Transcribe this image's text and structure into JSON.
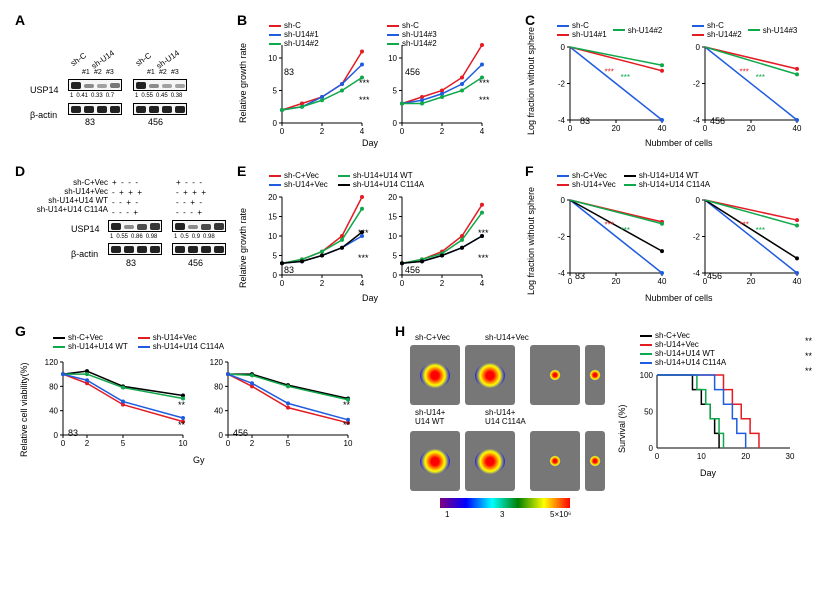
{
  "labels": {
    "A": "A",
    "B": "B",
    "C": "C",
    "D": "D",
    "E": "E",
    "F": "F",
    "G": "G",
    "H": "H"
  },
  "colors": {
    "red": "#e31b23",
    "blue": "#1f5ce0",
    "green": "#0fa84a",
    "black": "#000000",
    "grid": "#000000",
    "axis": "#000000"
  },
  "panelA": {
    "proteins": [
      "USP14",
      "β-actin"
    ],
    "cells": [
      "83",
      "456"
    ],
    "top_labels_left": [
      "sh-C",
      "sh-U14"
    ],
    "lane_sublabels": [
      "#1",
      "#2",
      "#3"
    ],
    "densities": [
      [
        "1",
        "0.41",
        "0.33",
        "0.7"
      ],
      [
        "1",
        "0.55",
        "0.45",
        "0.38"
      ]
    ]
  },
  "panelB": {
    "ylabel": "Relative growth rate",
    "xlabel": "Day",
    "cells": [
      "83",
      "456"
    ],
    "legend_left": [
      {
        "label": "sh-C",
        "color": "#e31b23"
      },
      {
        "label": "sh-U14#1",
        "color": "#1f5ce0"
      },
      {
        "label": "sh-U14#2",
        "color": "#0fa84a"
      }
    ],
    "legend_right": [
      {
        "label": "sh-C",
        "color": "#e31b23"
      },
      {
        "label": "sh-U14#3",
        "color": "#1f5ce0"
      },
      {
        "label": "sh-U14#2",
        "color": "#0fa84a"
      }
    ],
    "data83": {
      "x": [
        0,
        1,
        2,
        3,
        4
      ],
      "shC": [
        2,
        3,
        4,
        6,
        11
      ],
      "shU14_1": [
        2,
        2.5,
        4,
        6,
        9
      ],
      "shU14_2": [
        2,
        2.5,
        3.5,
        5,
        7
      ]
    },
    "data456": {
      "x": [
        0,
        1,
        2,
        3,
        4
      ],
      "shC": [
        3,
        4,
        5,
        7,
        12
      ],
      "shU14_3": [
        3,
        3.5,
        4.5,
        6,
        9
      ],
      "shU14_2": [
        3,
        3,
        4,
        5,
        7
      ]
    },
    "ylim": [
      0,
      12
    ],
    "ytick": 5,
    "xtick": [
      0,
      2,
      4
    ],
    "sig": "***"
  },
  "panelC": {
    "ylabel": "Log fraction without sphere",
    "xlabel": "Nubmber of cells",
    "cells": [
      "83",
      "456"
    ],
    "legend_left": [
      {
        "label": "sh-C",
        "color": "#1f5ce0"
      },
      {
        "label": "sh-U14#1",
        "color": "#e31b23"
      },
      {
        "label": "sh-U14#2",
        "color": "#0fa84a"
      }
    ],
    "legend_right": [
      {
        "label": "sh-C",
        "color": "#1f5ce0"
      },
      {
        "label": "sh-U14#2",
        "color": "#e31b23"
      },
      {
        "label": "sh-U14#3",
        "color": "#0fa84a"
      }
    ],
    "ylim": [
      -4,
      0
    ],
    "xlim": [
      0,
      40
    ],
    "xtick": [
      0,
      20,
      40
    ],
    "ytick": [
      -4,
      -2,
      0
    ],
    "data83": {
      "shC": [
        [
          0,
          0
        ],
        [
          40,
          -4
        ]
      ],
      "shU14_1": [
        [
          0,
          0
        ],
        [
          40,
          -1.3
        ]
      ],
      "shU14_2": [
        [
          0,
          0
        ],
        [
          40,
          -1.0
        ]
      ]
    },
    "data456": {
      "shC": [
        [
          0,
          0
        ],
        [
          40,
          -4
        ]
      ],
      "shU14_2": [
        [
          0,
          0
        ],
        [
          40,
          -1.2
        ]
      ],
      "shU14_3": [
        [
          0,
          0
        ],
        [
          40,
          -1.5
        ]
      ]
    },
    "sig": "***"
  },
  "panelD": {
    "conditions": [
      "sh-C+Vec",
      "sh-U14+Vec",
      "sh-U14+U14 WT",
      "sh-U14+U14 C114A"
    ],
    "proteins": [
      "USP14",
      "β-actin"
    ],
    "cells": [
      "83",
      "456"
    ],
    "densities": [
      [
        "1",
        "0.55",
        "0.86",
        "0.98"
      ],
      [
        "1",
        "0.5",
        "0.9",
        "0.98"
      ]
    ],
    "plus": "+",
    "minus": "-"
  },
  "panelE": {
    "ylabel": "Relative growth rate",
    "xlabel": "Day",
    "cells": [
      "83",
      "456"
    ],
    "legend": [
      {
        "label": "sh-C+Vec",
        "color": "#e31b23"
      },
      {
        "label": "sh-U14+Vec",
        "color": "#1f5ce0"
      },
      {
        "label": "sh-U14+U14 WT",
        "color": "#0fa84a"
      },
      {
        "label": "sh-U14+U14 C114A",
        "color": "#000000"
      }
    ],
    "ylim": [
      0,
      20
    ],
    "yticks": [
      0,
      5,
      10,
      15,
      20
    ],
    "xtick": [
      0,
      2,
      4
    ],
    "data83": {
      "x": [
        0,
        1,
        2,
        3,
        4
      ],
      "shC": [
        3,
        4,
        6,
        10,
        20
      ],
      "shU14": [
        3,
        3.5,
        5,
        7,
        10
      ],
      "WT": [
        3,
        4,
        6,
        9,
        17
      ],
      "C114A": [
        3,
        3.5,
        5,
        7,
        11
      ]
    },
    "data456": {
      "x": [
        0,
        1,
        2,
        3,
        4
      ],
      "shC": [
        3,
        4,
        6,
        10,
        18
      ],
      "shU14": [
        3,
        3.5,
        5,
        7,
        10
      ],
      "WT": [
        3,
        4,
        5.5,
        9,
        16
      ],
      "C114A": [
        3,
        3.5,
        5,
        7,
        10
      ]
    },
    "sig": "***"
  },
  "panelF": {
    "ylabel": "Log fraction without sphere",
    "xlabel": "Nubmber of cells",
    "cells": [
      "83",
      "456"
    ],
    "legend": [
      {
        "label": "sh-C+Vec",
        "color": "#1f5ce0"
      },
      {
        "label": "sh-U14+Vec",
        "color": "#e31b23"
      },
      {
        "label": "sh-U14+U14 WT",
        "color": "#000000"
      },
      {
        "label": "sh-U14+U14 C114A",
        "color": "#0fa84a"
      }
    ],
    "ylim": [
      -4,
      0
    ],
    "xlim": [
      0,
      40
    ],
    "xtick": [
      0,
      20,
      40
    ],
    "ytick": [
      -4,
      -2,
      0
    ],
    "data83": {
      "shC": [
        [
          0,
          0
        ],
        [
          40,
          -4
        ]
      ],
      "shU14": [
        [
          0,
          0
        ],
        [
          40,
          -1.2
        ]
      ],
      "WT": [
        [
          0,
          0
        ],
        [
          40,
          -2.8
        ]
      ],
      "C114A": [
        [
          0,
          0
        ],
        [
          40,
          -1.3
        ]
      ]
    },
    "data456": {
      "shC": [
        [
          0,
          0
        ],
        [
          40,
          -4
        ]
      ],
      "shU14": [
        [
          0,
          0
        ],
        [
          40,
          -1.1
        ]
      ],
      "WT": [
        [
          0,
          0
        ],
        [
          40,
          -3.2
        ]
      ],
      "C114A": [
        [
          0,
          0
        ],
        [
          40,
          -1.4
        ]
      ]
    },
    "sig": "***"
  },
  "panelG": {
    "ylabel": "Relative cell viability(%)",
    "xlabel": "Gy",
    "cells": [
      "83",
      "456"
    ],
    "legend": [
      {
        "label": "sh-C+Vec",
        "color": "#000000"
      },
      {
        "label": "sh-U14+Vec",
        "color": "#e31b23"
      },
      {
        "label": "sh-U14+U14 WT",
        "color": "#0fa84a"
      },
      {
        "label": "sh-U14+U14 C114A",
        "color": "#1f5ce0"
      }
    ],
    "ylim": [
      0,
      120
    ],
    "yticks": [
      0,
      40,
      80,
      120
    ],
    "xticks": [
      0,
      2,
      5,
      10
    ],
    "data83": {
      "x": [
        0,
        2,
        5,
        10
      ],
      "shC": [
        100,
        105,
        80,
        65
      ],
      "shU14": [
        100,
        85,
        50,
        22
      ],
      "WT": [
        100,
        100,
        78,
        60
      ],
      "C114A": [
        100,
        90,
        55,
        28
      ]
    },
    "data456": {
      "x": [
        0,
        2,
        5,
        10
      ],
      "shC": [
        100,
        100,
        82,
        60
      ],
      "shU14": [
        100,
        80,
        45,
        20
      ],
      "WT": [
        100,
        98,
        80,
        58
      ],
      "C114A": [
        100,
        85,
        52,
        25
      ]
    },
    "sig": "**"
  },
  "panelH": {
    "mouse_labels": [
      "sh-C+Vec",
      "sh-U14+Vec",
      "sh-U14+\nU14 WT",
      "sh-U14+\nU14 C114A"
    ],
    "colorbar_ticks": [
      "1",
      "3",
      "5×10⁶"
    ],
    "survival": {
      "ylabel": "Survival (%)",
      "xlabel": "Day",
      "yticks": [
        0,
        50,
        100
      ],
      "xticks": [
        0,
        10,
        20,
        30
      ],
      "legend": [
        {
          "label": "sh-C+Vec",
          "color": "#000000"
        },
        {
          "label": "sh-U14+Vec",
          "color": "#e31b23"
        },
        {
          "label": "sh-U14+U14 WT",
          "color": "#0fa84a"
        },
        {
          "label": "sh-U14+U14 C114A",
          "color": "#1f5ce0"
        }
      ],
      "data": {
        "shC": [
          [
            0,
            100
          ],
          [
            8,
            100
          ],
          [
            8,
            80
          ],
          [
            10,
            80
          ],
          [
            10,
            60
          ],
          [
            12,
            60
          ],
          [
            12,
            40
          ],
          [
            13,
            40
          ],
          [
            13,
            20
          ],
          [
            14,
            20
          ],
          [
            14,
            0
          ]
        ],
        "shU14": [
          [
            0,
            100
          ],
          [
            15,
            100
          ],
          [
            15,
            80
          ],
          [
            17,
            80
          ],
          [
            17,
            60
          ],
          [
            19,
            60
          ],
          [
            19,
            40
          ],
          [
            21,
            40
          ],
          [
            21,
            20
          ],
          [
            23,
            20
          ],
          [
            23,
            0
          ]
        ],
        "WT": [
          [
            0,
            100
          ],
          [
            9,
            100
          ],
          [
            9,
            80
          ],
          [
            11,
            80
          ],
          [
            11,
            60
          ],
          [
            12,
            60
          ],
          [
            12,
            40
          ],
          [
            14,
            40
          ],
          [
            14,
            20
          ],
          [
            15,
            20
          ],
          [
            15,
            0
          ]
        ],
        "C114A": [
          [
            0,
            100
          ],
          [
            13,
            100
          ],
          [
            13,
            80
          ],
          [
            15,
            80
          ],
          [
            15,
            60
          ],
          [
            17,
            60
          ],
          [
            17,
            40
          ],
          [
            18,
            40
          ],
          [
            18,
            20
          ],
          [
            20,
            20
          ],
          [
            20,
            0
          ]
        ]
      },
      "sig": "**"
    }
  }
}
